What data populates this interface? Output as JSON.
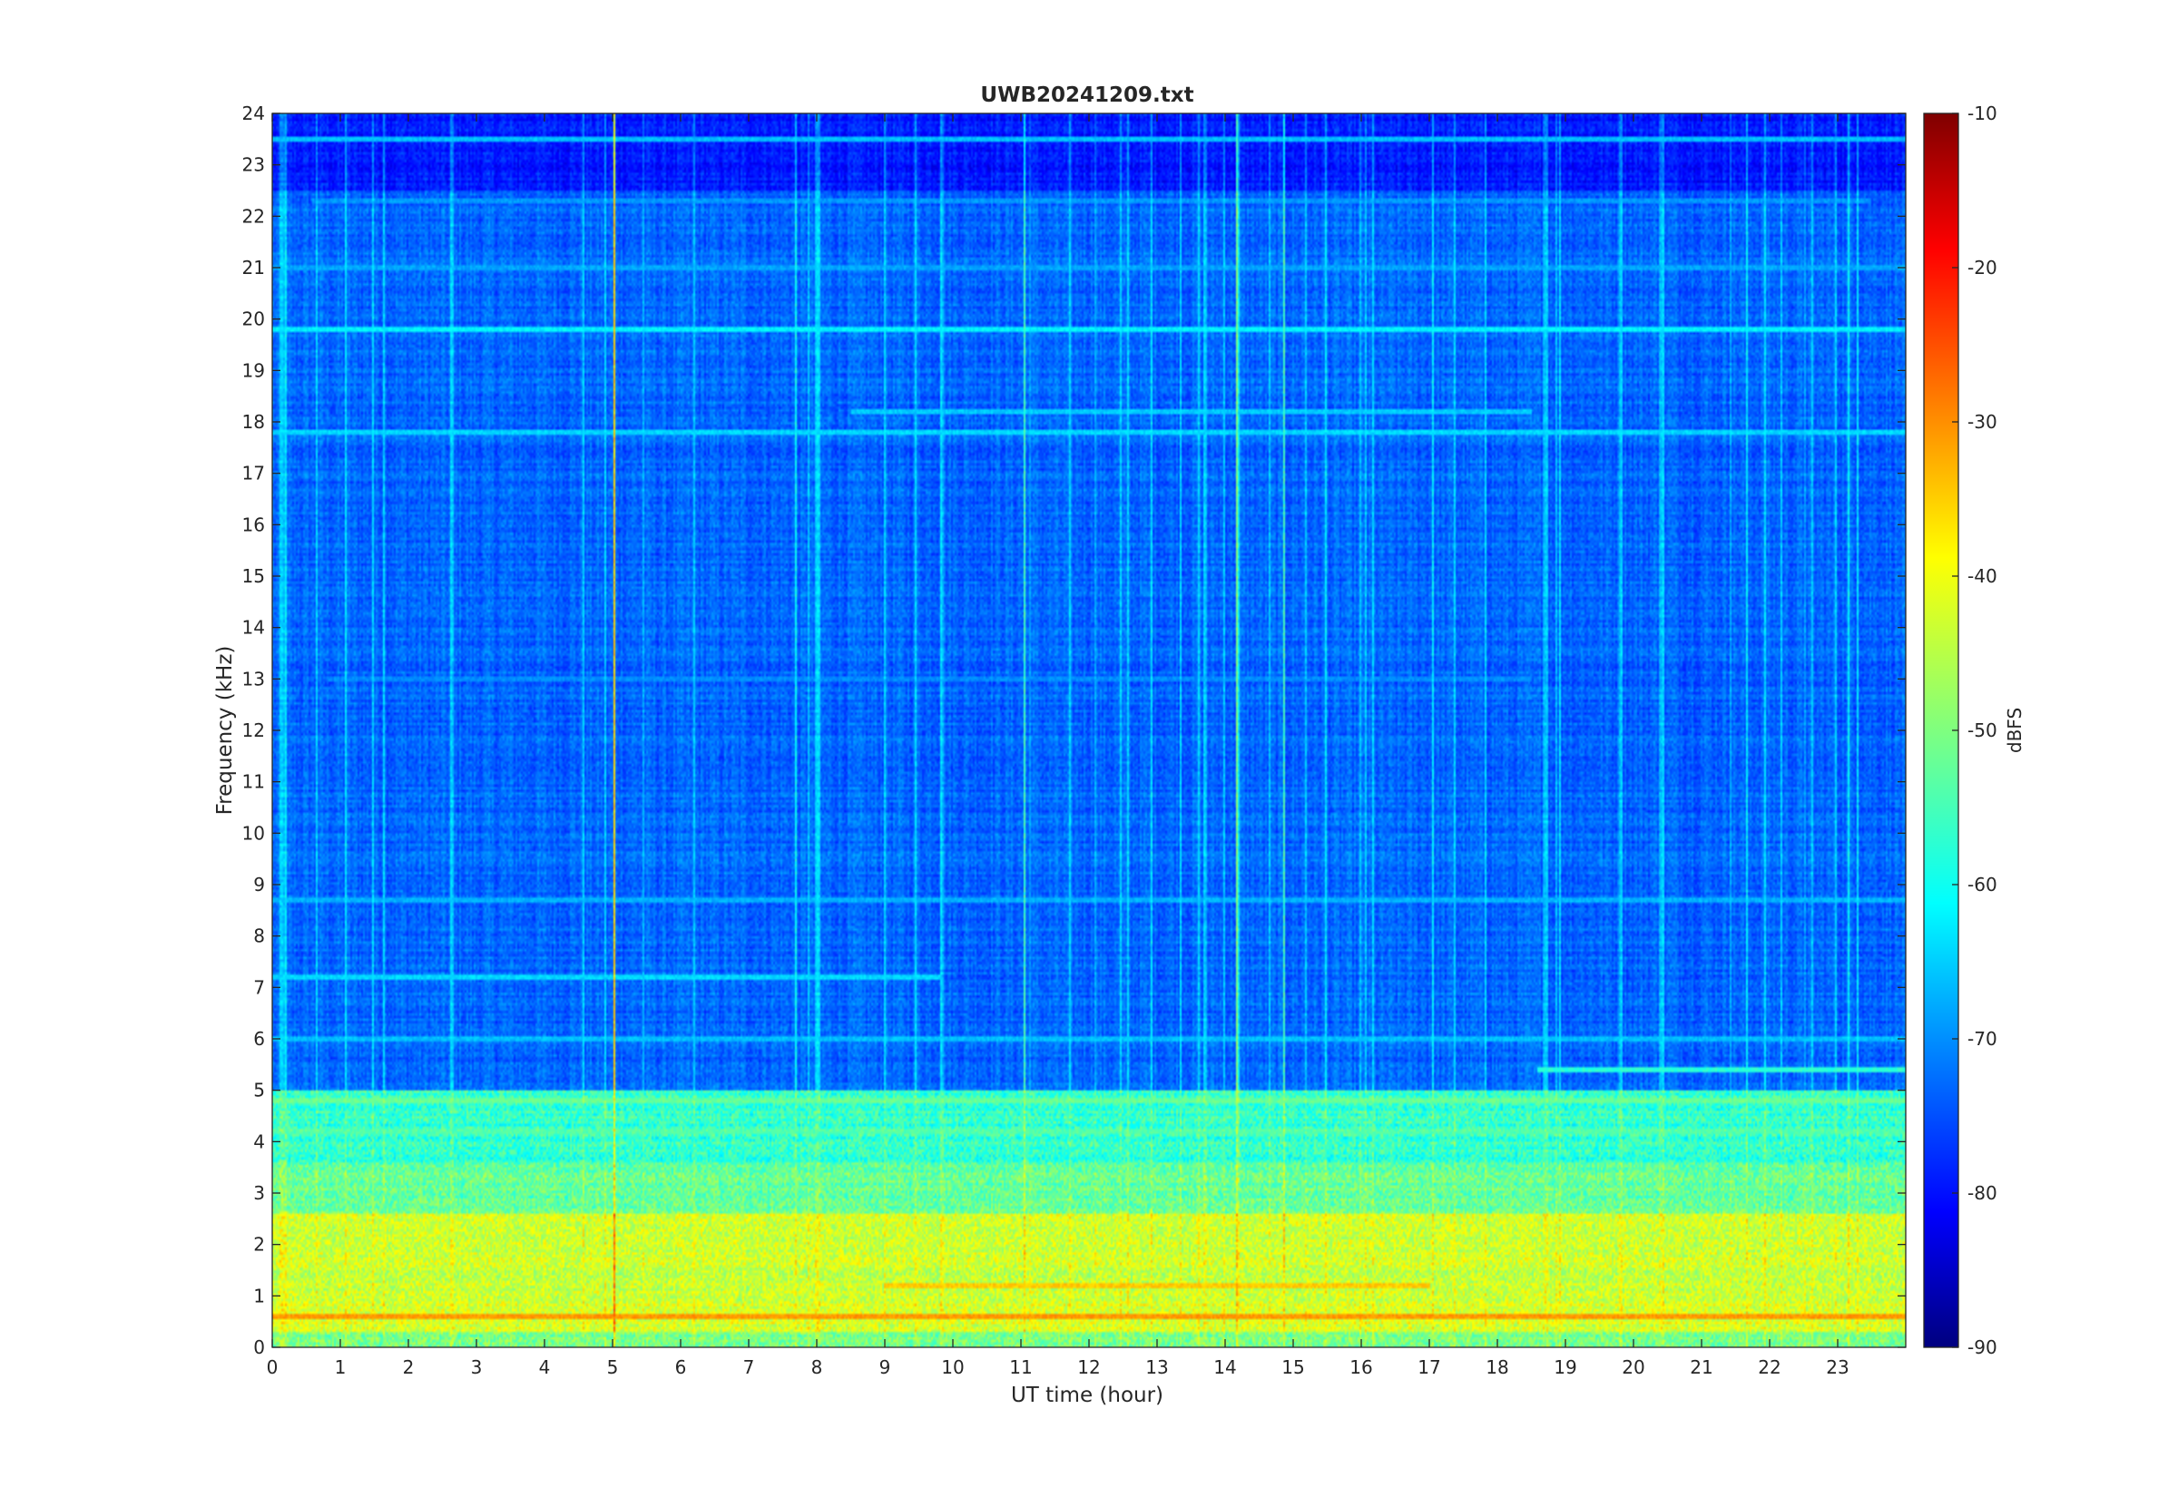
{
  "chart_data": {
    "type": "heatmap",
    "title": "UWB20241209.txt",
    "xlabel": "UT time (hour)",
    "ylabel": "Frequency (kHz)",
    "xlim": [
      0,
      24
    ],
    "ylim": [
      0,
      24
    ],
    "x_ticks": [
      "0",
      "1",
      "2",
      "3",
      "4",
      "5",
      "6",
      "7",
      "8",
      "9",
      "10",
      "11",
      "12",
      "13",
      "14",
      "15",
      "16",
      "17",
      "18",
      "19",
      "20",
      "21",
      "22",
      "23"
    ],
    "y_ticks": [
      "0",
      "1",
      "2",
      "3",
      "4",
      "5",
      "6",
      "7",
      "8",
      "9",
      "10",
      "11",
      "12",
      "13",
      "14",
      "15",
      "16",
      "17",
      "18",
      "19",
      "20",
      "21",
      "22",
      "23",
      "24"
    ],
    "colorbar": {
      "label": "dBFS",
      "range": [
        -90,
        -10
      ],
      "ticks": [
        "-90",
        "-80",
        "-70",
        "-60",
        "-50",
        "-40",
        "-30",
        "-20",
        "-10"
      ],
      "colormap": "jet"
    },
    "background_level_dbfs": -72,
    "low_frequency_band": [
      {
        "f_from": 0.0,
        "f_to": 0.3,
        "level": -50
      },
      {
        "f_from": 0.3,
        "f_to": 0.9,
        "level": -43
      },
      {
        "f_from": 0.9,
        "f_to": 2.6,
        "level": -44
      },
      {
        "f_from": 2.6,
        "f_to": 3.6,
        "level": -52
      },
      {
        "f_from": 3.6,
        "f_to": 5.0,
        "level": -56
      }
    ],
    "continuous_lines": [
      {
        "freq_khz": 19.8,
        "t_start": 0,
        "t_end": 24,
        "level": -61
      },
      {
        "freq_khz": 0.6,
        "t_start": 0,
        "t_end": 24,
        "level": -32
      },
      {
        "freq_khz": 1.2,
        "t_start": 9,
        "t_end": 17,
        "level": -36
      },
      {
        "freq_khz": 18.2,
        "t_start": 8.5,
        "t_end": 18.5,
        "level": -64
      },
      {
        "freq_khz": 21.0,
        "t_start": 0,
        "t_end": 24,
        "level": -67
      },
      {
        "freq_khz": 22.3,
        "t_start": 0.6,
        "t_end": 23.5,
        "level": -68
      },
      {
        "freq_khz": 17.8,
        "t_start": 0,
        "t_end": 24,
        "level": -63
      },
      {
        "freq_khz": 5.4,
        "t_start": 18.6,
        "t_end": 24,
        "level": -57
      },
      {
        "freq_khz": 6.0,
        "t_start": 0,
        "t_end": 24,
        "level": -65
      },
      {
        "freq_khz": 7.2,
        "t_start": 0,
        "t_end": 9.8,
        "level": -63
      },
      {
        "freq_khz": 8.7,
        "t_start": 0,
        "t_end": 24,
        "level": -66
      },
      {
        "freq_khz": 4.8,
        "t_start": 0,
        "t_end": 24,
        "level": -52
      },
      {
        "freq_khz": 4.2,
        "t_start": 0,
        "t_end": 24,
        "level": -54
      },
      {
        "freq_khz": 23.5,
        "t_start": 0,
        "t_end": 24,
        "level": -65
      },
      {
        "freq_khz": 13.0,
        "t_start": 0.8,
        "t_end": 18.5,
        "level": -69
      }
    ],
    "time_markers_hour": [
      0.15,
      8.0,
      18.7,
      20.4
    ]
  }
}
